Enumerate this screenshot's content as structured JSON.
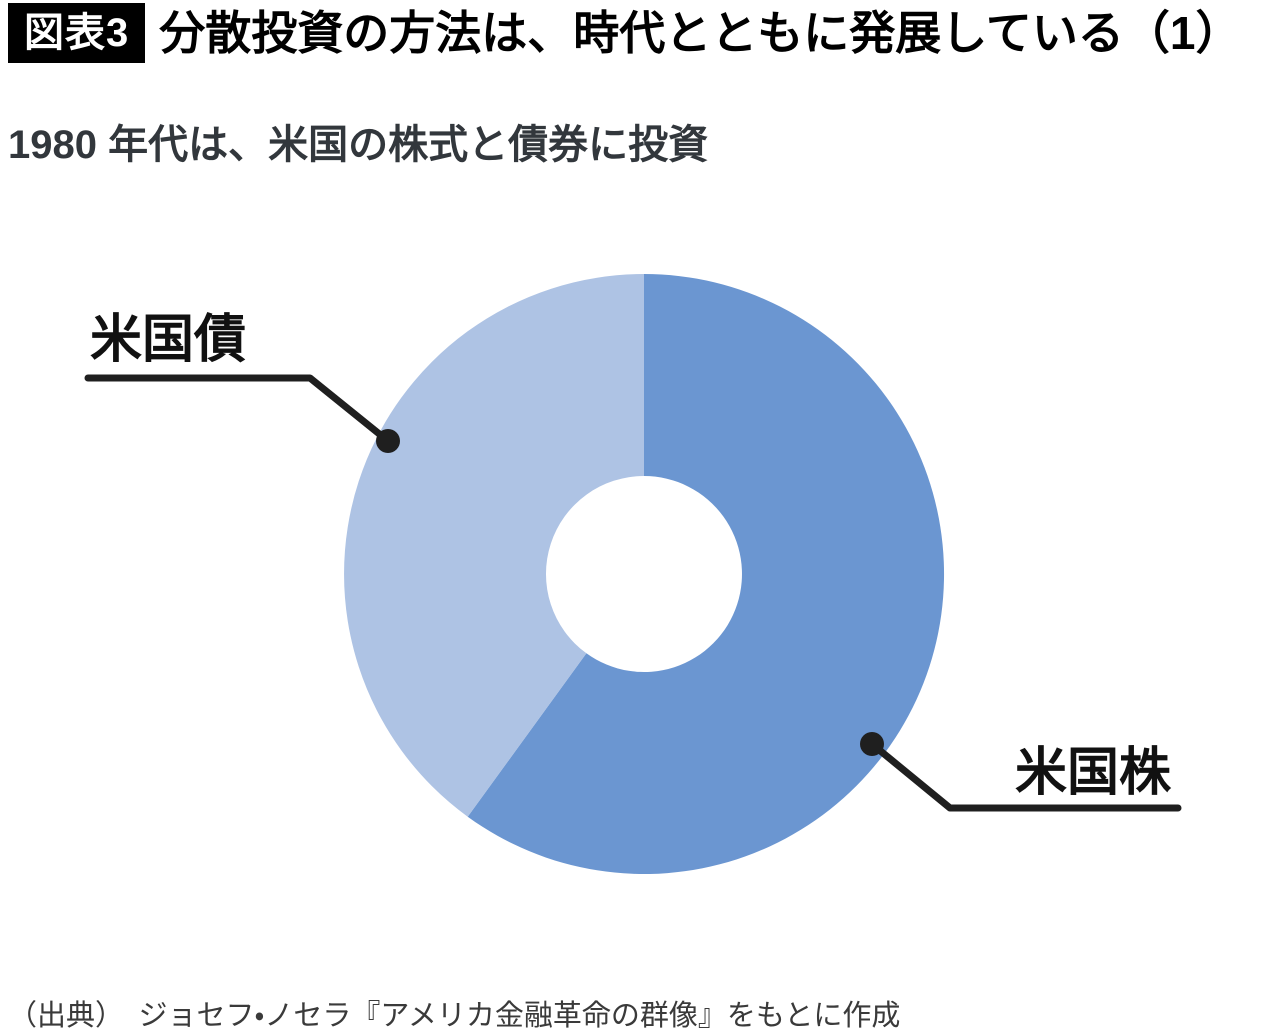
{
  "figure": {
    "tag": "図表3",
    "title": "分散投資の方法は、時代とともに発展している（1）",
    "subtitle": "1980 年代は、米国の株式と債券に投資",
    "source": "（出典）　ジョセフ・ノセラ『アメリカ金融革命の群像』をもとに作成"
  },
  "labels": {
    "stocks": "米国株",
    "bonds": "米国債"
  },
  "colors": {
    "stocks_slice": "#6b96d1",
    "bonds_slice": "#aec3e4",
    "leader_line": "#1f1f1f",
    "tag_background": "#000000",
    "tag_text": "#ffffff"
  },
  "chart_data": {
    "type": "pie",
    "subtype": "donut",
    "title": "1980 年代は、米国の株式と債券に投資",
    "categories": [
      "米国株",
      "米国債"
    ],
    "values": [
      60,
      40
    ],
    "unit": "percent",
    "colors": [
      "#6b96d1",
      "#aec3e4"
    ],
    "start_angle_deg": 0,
    "direction": "clockwise",
    "inner_radius_ratio": 0.327,
    "legend_position": "none",
    "data_labels": "callout-lines-only",
    "annotations": [
      {
        "label": "米国債",
        "position": "upper-left"
      },
      {
        "label": "米国株",
        "position": "lower-right"
      }
    ]
  }
}
